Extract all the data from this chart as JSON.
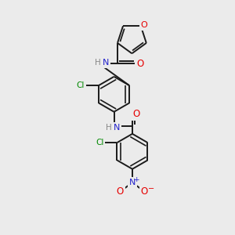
{
  "bg_color": "#ebebeb",
  "bond_color": "#1a1a1a",
  "bond_width": 1.4,
  "atom_colors": {
    "O": "#e60000",
    "N": "#2222cc",
    "Cl": "#008800",
    "H": "#888888",
    "C": "#1a1a1a"
  },
  "figsize": [
    3.0,
    3.0
  ],
  "dpi": 100
}
